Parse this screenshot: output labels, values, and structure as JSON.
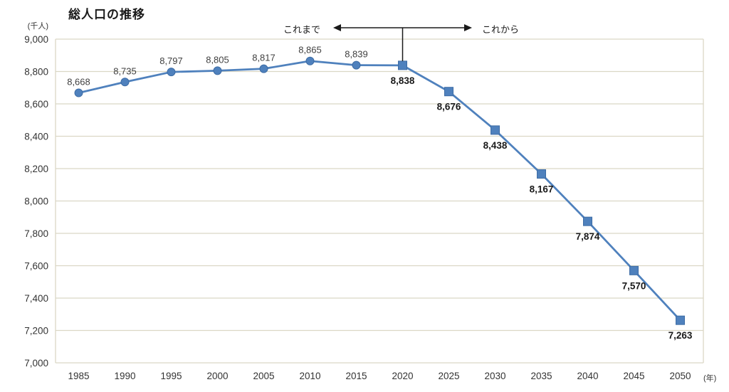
{
  "chart": {
    "title": "総人口の推移",
    "y_unit_label": "(千人)",
    "x_unit_label": "(年)",
    "annotation": {
      "past_label": "これまで",
      "future_label": "これから"
    },
    "colors": {
      "series": "#4F81BD",
      "marker_stroke": "#3D6CA5",
      "grid": "#DBD7C5",
      "tick_text": "#333333",
      "label_text_past": "#404040",
      "label_text_future": "#1a1a1a",
      "annotation": "#1a1a1a"
    }
  },
  "chart_data": {
    "type": "line",
    "title": "総人口の推移",
    "ylabel": "(千人)",
    "xlabel": "(年)",
    "x": [
      1985,
      1990,
      1995,
      2000,
      2005,
      2010,
      2015,
      2020,
      2025,
      2030,
      2035,
      2040,
      2045,
      2050
    ],
    "values": [
      8668,
      8735,
      8797,
      8805,
      8817,
      8865,
      8839,
      8838,
      8676,
      8438,
      8167,
      7874,
      7570,
      7263
    ],
    "data_labels": [
      "8,668",
      "8,735",
      "8,797",
      "8,805",
      "8,817",
      "8,865",
      "8,839",
      "8,838",
      "8,676",
      "8,438",
      "8,167",
      "7,874",
      "7,570",
      "7,263"
    ],
    "ylim": [
      7000,
      9000
    ],
    "ytick_step": 200,
    "ytick_labels": [
      "7,000",
      "7,200",
      "7,400",
      "7,600",
      "7,800",
      "8,000",
      "8,200",
      "8,400",
      "8,600",
      "8,800",
      "9,000"
    ],
    "grid": true,
    "legend": "none",
    "past_marker": "circle",
    "future_marker": "square",
    "future_start_index": 7,
    "annotations": {
      "past": "これまで",
      "future": "これから",
      "divider_year": 2020
    }
  }
}
